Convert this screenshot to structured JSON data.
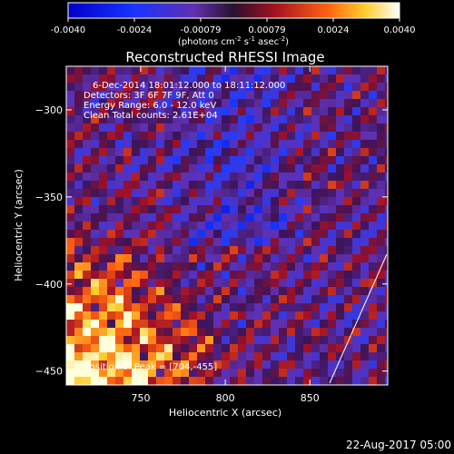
{
  "chart_data": {
    "type": "heatmap",
    "title": "Reconstructed RHESSI Image",
    "xlabel": "Heliocentric X (arcsec)",
    "ylabel": "Heliocentric Y (arcsec)",
    "xlim": [
      706,
      896
    ],
    "ylim": [
      -458,
      -275
    ],
    "x_ticks": [
      750,
      800,
      850
    ],
    "y_ticks": [
      -300,
      -350,
      -400,
      -450
    ],
    "colorbar": {
      "ticks": [
        "-0.0040",
        "-0.0024",
        "-0.00079",
        "0.00079",
        "0.0024",
        "0.0040"
      ],
      "range": [
        -0.004,
        0.004
      ],
      "units_prefix": "(photons cm",
      "units_exp1": "-2",
      "units_mid1": " s",
      "units_exp2": "-1",
      "units_mid2": " asec",
      "units_exp3": "-2",
      "units_suffix": ")"
    },
    "annotations": [
      "6-Dec-2014 18:01:12.000 to 18:11:12.000",
      "Detectors: 3F 6F 7F 9F, Att 0",
      "Energy Range: 6.0 - 12.0 keV",
      "Clean     Total counts: 2.61E+04"
    ],
    "peak_label": "Position of Peak = [704,-455]",
    "timestamp": "22-Aug-2017 05:00",
    "pattern": "diagonal striped background (dark blue/purple with red streaks); strong bright yellow-white emission in lower-left corner; white solar limb line in lower-right",
    "colors": {
      "background": "#000000",
      "low": "#0000ff",
      "mid": "#5a1a8c",
      "high": "#ffff80"
    }
  }
}
